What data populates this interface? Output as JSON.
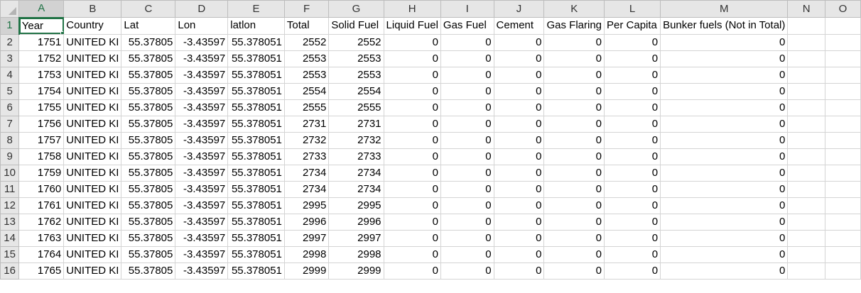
{
  "columns": [
    "A",
    "B",
    "C",
    "D",
    "E",
    "F",
    "G",
    "H",
    "I",
    "J",
    "K",
    "L",
    "M",
    "N",
    "O"
  ],
  "active_column": "A",
  "active_row": 1,
  "header_row": [
    "Year",
    "Country",
    "Lat",
    "Lon",
    "latlon",
    "Total",
    "Solid Fuel",
    "Liquid Fuel",
    "Gas Fuel",
    "Cement",
    "Gas Flaring",
    "Per Capita",
    "Bunker fuels (Not in Total)",
    "",
    ""
  ],
  "rows": [
    [
      "1751",
      "UNITED KI",
      "55.37805",
      "-3.43597",
      "55.378051",
      "2552",
      "2552",
      "0",
      "0",
      "0",
      "0",
      "0",
      "0",
      "",
      ""
    ],
    [
      "1752",
      "UNITED KI",
      "55.37805",
      "-3.43597",
      "55.378051",
      "2553",
      "2553",
      "0",
      "0",
      "0",
      "0",
      "0",
      "0",
      "",
      ""
    ],
    [
      "1753",
      "UNITED KI",
      "55.37805",
      "-3.43597",
      "55.378051",
      "2553",
      "2553",
      "0",
      "0",
      "0",
      "0",
      "0",
      "0",
      "",
      ""
    ],
    [
      "1754",
      "UNITED KI",
      "55.37805",
      "-3.43597",
      "55.378051",
      "2554",
      "2554",
      "0",
      "0",
      "0",
      "0",
      "0",
      "0",
      "",
      ""
    ],
    [
      "1755",
      "UNITED KI",
      "55.37805",
      "-3.43597",
      "55.378051",
      "2555",
      "2555",
      "0",
      "0",
      "0",
      "0",
      "0",
      "0",
      "",
      ""
    ],
    [
      "1756",
      "UNITED KI",
      "55.37805",
      "-3.43597",
      "55.378051",
      "2731",
      "2731",
      "0",
      "0",
      "0",
      "0",
      "0",
      "0",
      "",
      ""
    ],
    [
      "1757",
      "UNITED KI",
      "55.37805",
      "-3.43597",
      "55.378051",
      "2732",
      "2732",
      "0",
      "0",
      "0",
      "0",
      "0",
      "0",
      "",
      ""
    ],
    [
      "1758",
      "UNITED KI",
      "55.37805",
      "-3.43597",
      "55.378051",
      "2733",
      "2733",
      "0",
      "0",
      "0",
      "0",
      "0",
      "0",
      "",
      ""
    ],
    [
      "1759",
      "UNITED KI",
      "55.37805",
      "-3.43597",
      "55.378051",
      "2734",
      "2734",
      "0",
      "0",
      "0",
      "0",
      "0",
      "0",
      "",
      ""
    ],
    [
      "1760",
      "UNITED KI",
      "55.37805",
      "-3.43597",
      "55.378051",
      "2734",
      "2734",
      "0",
      "0",
      "0",
      "0",
      "0",
      "0",
      "",
      ""
    ],
    [
      "1761",
      "UNITED KI",
      "55.37805",
      "-3.43597",
      "55.378051",
      "2995",
      "2995",
      "0",
      "0",
      "0",
      "0",
      "0",
      "0",
      "",
      ""
    ],
    [
      "1762",
      "UNITED KI",
      "55.37805",
      "-3.43597",
      "55.378051",
      "2996",
      "2996",
      "0",
      "0",
      "0",
      "0",
      "0",
      "0",
      "",
      ""
    ],
    [
      "1763",
      "UNITED KI",
      "55.37805",
      "-3.43597",
      "55.378051",
      "2997",
      "2997",
      "0",
      "0",
      "0",
      "0",
      "0",
      "0",
      "",
      ""
    ],
    [
      "1764",
      "UNITED KI",
      "55.37805",
      "-3.43597",
      "55.378051",
      "2998",
      "2998",
      "0",
      "0",
      "0",
      "0",
      "0",
      "0",
      "",
      ""
    ],
    [
      "1765",
      "UNITED KI",
      "55.37805",
      "-3.43597",
      "55.378051",
      "2999",
      "2999",
      "0",
      "0",
      "0",
      "0",
      "0",
      "0",
      "",
      ""
    ]
  ]
}
